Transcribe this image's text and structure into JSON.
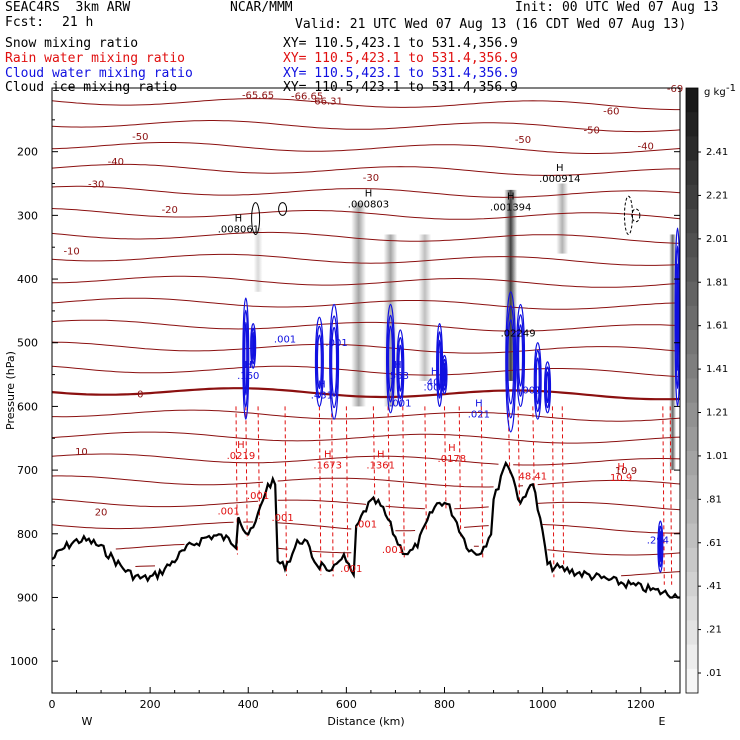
{
  "header": {
    "model": "SEAC4RS  3km ARW",
    "fcst_label": "Fcst:",
    "fcst_value": "21 h",
    "org": "NCAR/MMM",
    "init": "Init: 00 UTC Wed 07 Aug 13",
    "valid": "Valid: 21 UTC Wed 07 Aug 13 (16 CDT Wed 07 Aug 13)"
  },
  "fields": [
    {
      "name": "Snow mixing ratio",
      "xy": "XY= 110.5,423.1 to 531.4,356.9",
      "color": "#000000"
    },
    {
      "name": "Rain water mixing ratio",
      "xy": "XY= 110.5,423.1 to 531.4,356.9",
      "color": "#e01010"
    },
    {
      "name": "Cloud water mixing ratio",
      "xy": "XY= 110.5,423.1 to 531.4,356.9",
      "color": "#1010e0"
    },
    {
      "name": "Cloud ice mixing ratio",
      "xy": "XY= 110.5,423.1 to 531.4,356.9",
      "color": "#000000"
    }
  ],
  "chart_data": {
    "type": "cross-section",
    "xlabel": "Distance (km)",
    "ylabel": "Pressure (hPa)",
    "xlim": [
      0,
      1280
    ],
    "ylim": [
      1050,
      100
    ],
    "x_ticks": [
      0,
      200,
      400,
      600,
      800,
      1000,
      1200
    ],
    "y_ticks": [
      200,
      300,
      400,
      500,
      600,
      700,
      800,
      900,
      1000
    ],
    "x_end_labels": {
      "left": "W",
      "right": "E"
    },
    "colorbar": {
      "unit": "g kg",
      "unit_exp": "-1",
      "labels": [
        "2.41",
        "2.21",
        "2.01",
        "1.81",
        "1.61",
        "1.41",
        "1.21",
        "1.01",
        ".81",
        ".61",
        ".41",
        ".21",
        ".01"
      ]
    },
    "temperature_contour_labels": [
      "-65.65",
      "-66.65",
      "-66.31",
      "-69",
      "-60",
      "-50",
      "-50",
      "-50",
      "-40",
      "-40",
      "-30",
      "-30",
      "-20",
      "-10",
      "0",
      "10",
      "10.9",
      "20"
    ],
    "annotations": [
      {
        "text": "H",
        "val": ".008061",
        "x": 380,
        "p": 310,
        "color": "#000000"
      },
      {
        "text": "H",
        "val": ".000803",
        "x": 645,
        "p": 270,
        "color": "#000000"
      },
      {
        "text": "H",
        "val": ".001394",
        "x": 935,
        "p": 275,
        "color": "#000000"
      },
      {
        "text": "H",
        "val": ".000914",
        "x": 1035,
        "p": 230,
        "color": "#000000"
      },
      {
        "text": "H",
        "val": ".160",
        "x": 400,
        "p": 540,
        "color": "#1010e0"
      },
      {
        "text": "H",
        "val": ".431",
        "x": 550,
        "p": 570,
        "color": "#1010e0"
      },
      {
        "text": "H",
        "val": ".553",
        "x": 705,
        "p": 540,
        "color": "#1010e0"
      },
      {
        "text": "H",
        "val": ".401",
        "x": 780,
        "p": 550,
        "color": "#1010e0"
      },
      {
        "text": "H",
        "val": ".021",
        "x": 870,
        "p": 600,
        "color": "#1010e0"
      },
      {
        "text": "H",
        "val": ".0219",
        "x": 385,
        "p": 665,
        "color": "#e01010"
      },
      {
        "text": "H",
        "val": ".1673",
        "x": 562,
        "p": 680,
        "color": "#e01010"
      },
      {
        "text": "H",
        "val": ".1361",
        "x": 670,
        "p": 680,
        "color": "#e01010"
      },
      {
        "text": "H",
        "val": ".0178",
        "x": 815,
        "p": 670,
        "color": "#e01010"
      },
      {
        "text": "H",
        "val": "10.9",
        "x": 1160,
        "p": 700,
        "color": "#e01010"
      }
    ],
    "small_labels": [
      {
        "text": ".001",
        "x": 475,
        "p": 500,
        "color": "#1010e0"
      },
      {
        "text": ".001",
        "x": 580,
        "p": 505,
        "color": "#1010e0"
      },
      {
        "text": ".001",
        "x": 710,
        "p": 600,
        "color": "#1010e0"
      },
      {
        "text": ".001",
        "x": 780,
        "p": 575,
        "color": "#1010e0"
      },
      {
        "text": ".02249",
        "x": 950,
        "p": 490,
        "color": "#000000"
      },
      {
        "text": ".001",
        "x": 975,
        "p": 580,
        "color": "#1010e0"
      },
      {
        "text": ".294",
        "x": 1235,
        "p": 815,
        "color": "#1010e0"
      },
      {
        "text": ".001",
        "x": 420,
        "p": 745,
        "color": "#e01010"
      },
      {
        "text": ".001",
        "x": 360,
        "p": 770,
        "color": "#e01010"
      },
      {
        "text": ".001",
        "x": 470,
        "p": 780,
        "color": "#e01010"
      },
      {
        "text": ".001",
        "x": 640,
        "p": 790,
        "color": "#e01010"
      },
      {
        "text": ".001",
        "x": 695,
        "p": 830,
        "color": "#e01010"
      },
      {
        "text": ".001",
        "x": 610,
        "p": 860,
        "color": "#e01010"
      },
      {
        "text": "48.41",
        "x": 980,
        "p": 715,
        "color": "#e01010"
      }
    ]
  }
}
